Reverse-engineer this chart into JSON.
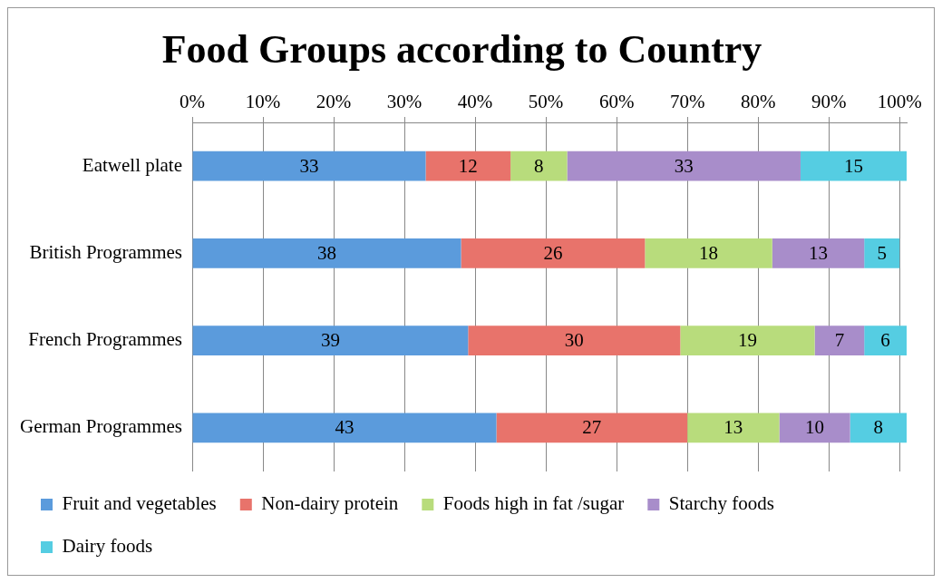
{
  "chart_data": {
    "type": "bar",
    "orientation": "horizontal",
    "stacked": true,
    "title": "Food Groups according to Country",
    "categories": [
      "Eatwell plate",
      "British Programmes",
      "French Programmes",
      "German Programmes"
    ],
    "series": [
      {
        "name": "Fruit and vegetables",
        "color": "#5b9bdc",
        "values": [
          33,
          38,
          39,
          43
        ]
      },
      {
        "name": "Non-dairy protein",
        "color": "#e8736b",
        "values": [
          12,
          26,
          30,
          27
        ]
      },
      {
        "name": "Foods high in fat /sugar",
        "color": "#b8dc7c",
        "values": [
          8,
          18,
          19,
          13
        ]
      },
      {
        "name": "Starchy foods",
        "color": "#a88dca",
        "values": [
          33,
          13,
          7,
          10
        ]
      },
      {
        "name": "Dairy foods",
        "color": "#55cde2",
        "values": [
          15,
          5,
          6,
          8
        ]
      }
    ],
    "xlim": [
      0,
      101
    ],
    "xticks": [
      {
        "value": 0,
        "label": "0%"
      },
      {
        "value": 10,
        "label": "10%"
      },
      {
        "value": 20,
        "label": "20%"
      },
      {
        "value": 30,
        "label": "30%"
      },
      {
        "value": 40,
        "label": "40%"
      },
      {
        "value": 50,
        "label": "50%"
      },
      {
        "value": 60,
        "label": "60%"
      },
      {
        "value": 70,
        "label": "70%"
      },
      {
        "value": 80,
        "label": "80%"
      },
      {
        "value": 90,
        "label": "90%"
      },
      {
        "value": 100,
        "label": "100%"
      }
    ],
    "grid": "x",
    "legend": "bottom",
    "data_labels": true
  }
}
